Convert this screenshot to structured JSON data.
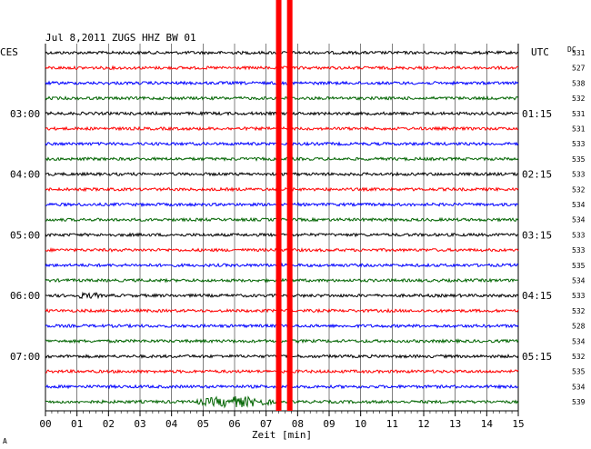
{
  "chart_data": {
    "type": "line",
    "title": "Jul 8,2011   ZUGS HHZ BW 01",
    "left_timezone_label": "CES",
    "right_timezone_label": "UTC",
    "dc_label": "DC",
    "xlabel": "Zeit [min]",
    "xlim": [
      0,
      15
    ],
    "x_ticks": [
      "00",
      "01",
      "02",
      "03",
      "04",
      "05",
      "06",
      "07",
      "08",
      "09",
      "10",
      "11",
      "12",
      "13",
      "14",
      "15"
    ],
    "left_hour_labels": [
      "03:00",
      "04:00",
      "05:00",
      "06:00",
      "07:00"
    ],
    "right_hour_labels": [
      "01:15",
      "02:15",
      "03:15",
      "04:15",
      "05:15"
    ],
    "dc_values": [
      531,
      527,
      538,
      532,
      531,
      531,
      533,
      535,
      533,
      532,
      534,
      534,
      533,
      533,
      535,
      534,
      533,
      532,
      528,
      534,
      532,
      535,
      534,
      539
    ],
    "trace_colors": [
      "#000000",
      "#ff0000",
      "#0000ff",
      "#006400"
    ],
    "event_marker": {
      "color": "#ff0000",
      "x_minutes": [
        7.4,
        7.75
      ]
    },
    "grid": true,
    "footer_mark": "A"
  }
}
